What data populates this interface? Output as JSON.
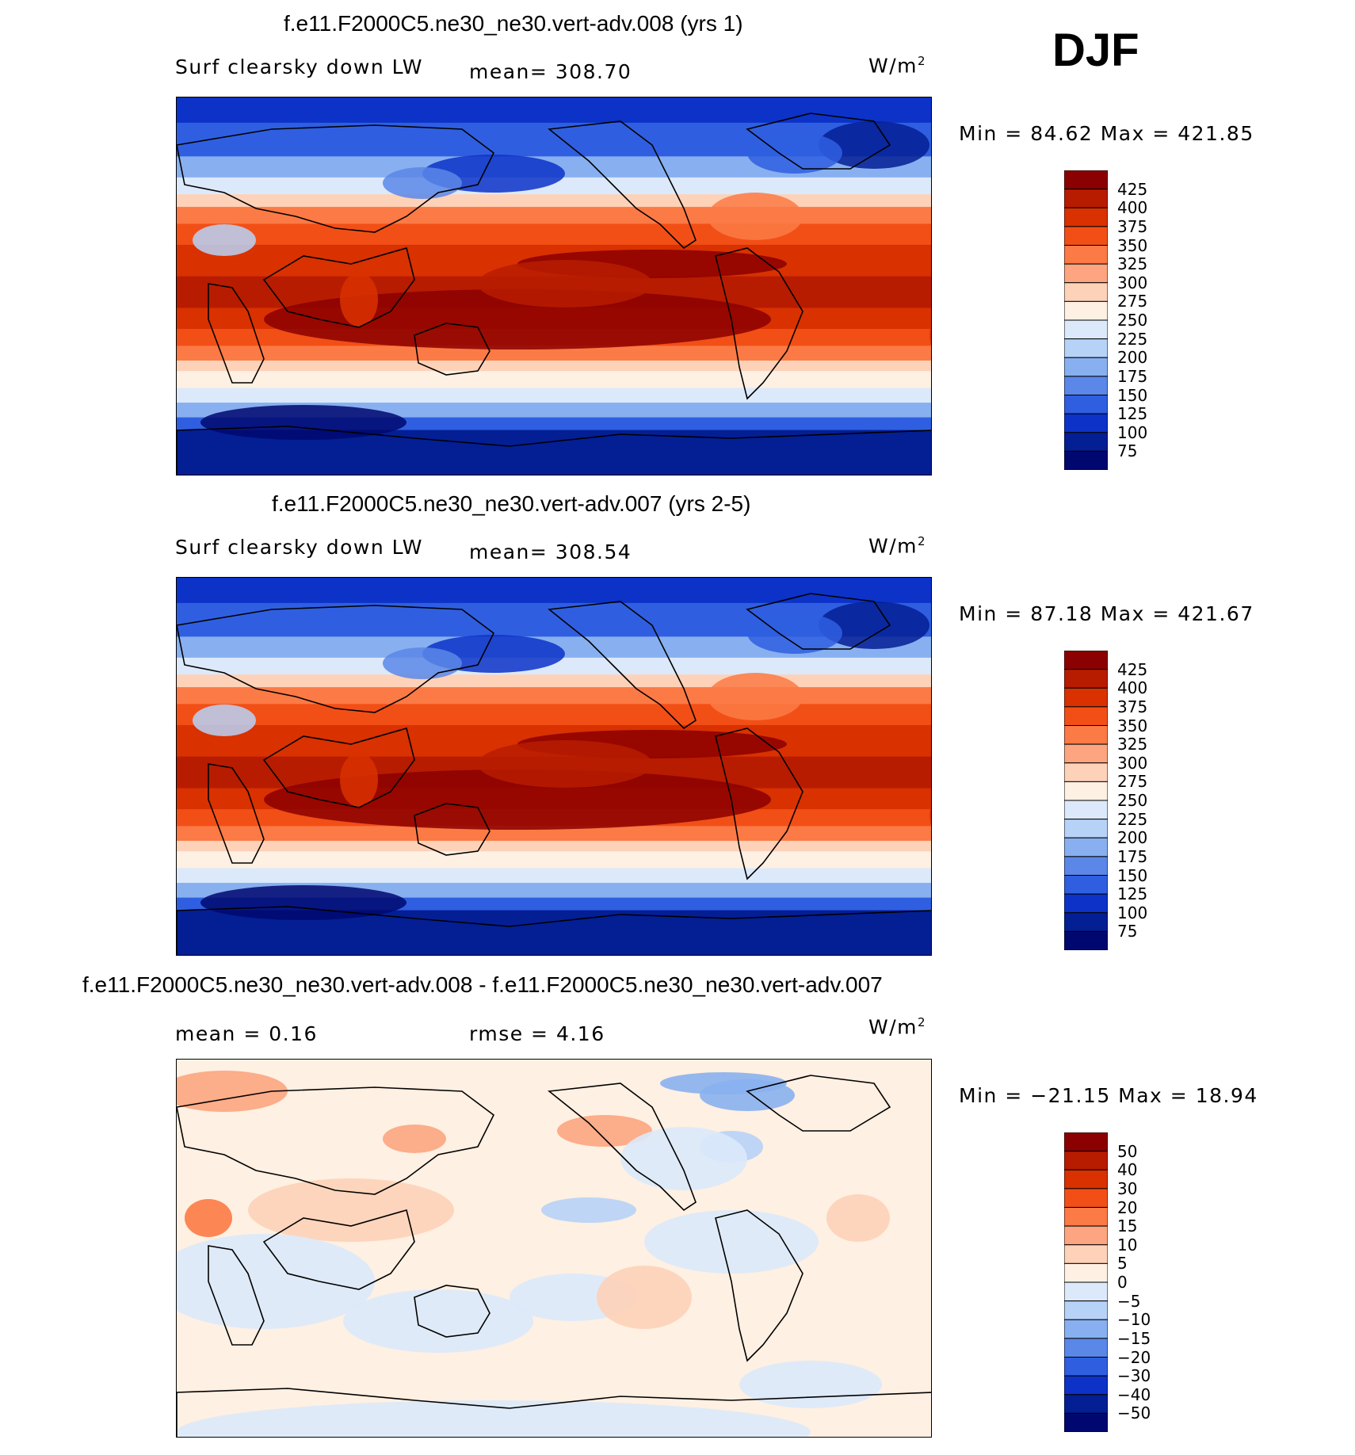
{
  "season": "DJF",
  "panels": [
    {
      "title": "f.e11.F2000C5.ne30_ne30.vert-adv.008 (yrs 1)",
      "left_label": "Surf clearsky down LW",
      "mid_label": "mean=  308.70",
      "units": "W/m",
      "units_sup": "2",
      "minmax": "Min =   84.62 Max =  421.85",
      "levels": [
        "425",
        "400",
        "375",
        "350",
        "325",
        "300",
        "275",
        "250",
        "225",
        "200",
        "175",
        "150",
        "125",
        "100",
        "75"
      ],
      "colors": [
        "#8b0000",
        "#b71c00",
        "#d93100",
        "#f24f16",
        "#fc7a45",
        "#fca580",
        "#fdd2b8",
        "#fef0e2",
        "#dce9fb",
        "#b7d2f7",
        "#88b0f0",
        "#5a87e8",
        "#2f5fe0",
        "#0c32c8",
        "#041e94",
        "#000870"
      ],
      "field": "abs"
    },
    {
      "title": "f.e11.F2000C5.ne30_ne30.vert-adv.007 (yrs 2-5)",
      "left_label": "Surf clearsky down LW",
      "mid_label": "mean=  308.54",
      "units": "W/m",
      "units_sup": "2",
      "minmax": "Min =   87.18 Max =  421.67",
      "levels": [
        "425",
        "400",
        "375",
        "350",
        "325",
        "300",
        "275",
        "250",
        "225",
        "200",
        "175",
        "150",
        "125",
        "100",
        "75"
      ],
      "colors": [
        "#8b0000",
        "#b71c00",
        "#d93100",
        "#f24f16",
        "#fc7a45",
        "#fca580",
        "#fdd2b8",
        "#fef0e2",
        "#dce9fb",
        "#b7d2f7",
        "#88b0f0",
        "#5a87e8",
        "#2f5fe0",
        "#0c32c8",
        "#041e94",
        "#000870"
      ],
      "field": "abs"
    },
    {
      "title": "f.e11.F2000C5.ne30_ne30.vert-adv.008 - f.e11.F2000C5.ne30_ne30.vert-adv.007",
      "left_label": "mean =    0.16",
      "mid_label": "rmse =    4.16",
      "units": "W/m",
      "units_sup": "2",
      "minmax": "Min = −21.15 Max =   18.94",
      "levels": [
        "50",
        "40",
        "30",
        "20",
        "15",
        "10",
        "5",
        "0",
        "−5",
        "−10",
        "−15",
        "−20",
        "−30",
        "−40",
        "−50"
      ],
      "colors": [
        "#8b0000",
        "#b71c00",
        "#d93100",
        "#f24f16",
        "#fc7a45",
        "#fca580",
        "#fdd2b8",
        "#fef0e2",
        "#dce9fb",
        "#b7d2f7",
        "#88b0f0",
        "#5a87e8",
        "#2f5fe0",
        "#0c32c8",
        "#041e94",
        "#000870"
      ],
      "field": "diff"
    }
  ]
}
